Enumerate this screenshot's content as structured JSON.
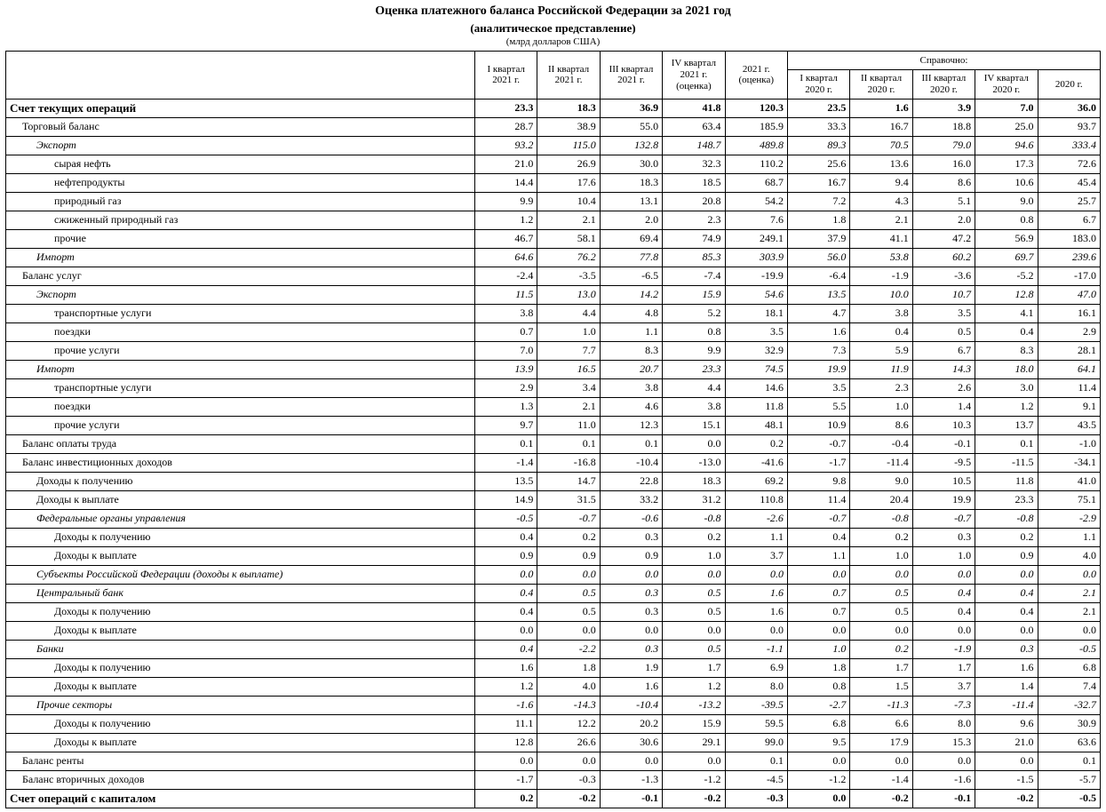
{
  "title_main": "Оценка платежного баланса Российской Федерации за 2021 год",
  "title_sub": "(аналитическое представление)",
  "title_unit": "(млрд долларов США)",
  "header_reference": "Справочно:",
  "columns": [
    "I квартал 2021 г.",
    "II квартал 2021 г.",
    "III квартал 2021 г.",
    "IV квартал 2021 г. (оценка)",
    "2021 г. (оценка)",
    "I квартал 2020 г.",
    "II квартал 2020 г.",
    "III квартал 2020 г.",
    "IV квартал 2020 г.",
    "2020 г."
  ],
  "rows": [
    {
      "label": "Счет текущих операций",
      "indent": 0,
      "bold": true,
      "italic": false,
      "v": [
        "23.3",
        "18.3",
        "36.9",
        "41.8",
        "120.3",
        "23.5",
        "1.6",
        "3.9",
        "7.0",
        "36.0"
      ]
    },
    {
      "label": "Торговый баланс",
      "indent": 1,
      "bold": false,
      "italic": false,
      "v": [
        "28.7",
        "38.9",
        "55.0",
        "63.4",
        "185.9",
        "33.3",
        "16.7",
        "18.8",
        "25.0",
        "93.7"
      ]
    },
    {
      "label": "Экспорт",
      "indent": 2,
      "bold": false,
      "italic": true,
      "v": [
        "93.2",
        "115.0",
        "132.8",
        "148.7",
        "489.8",
        "89.3",
        "70.5",
        "79.0",
        "94.6",
        "333.4"
      ]
    },
    {
      "label": "сырая нефть",
      "indent": 3,
      "bold": false,
      "italic": false,
      "v": [
        "21.0",
        "26.9",
        "30.0",
        "32.3",
        "110.2",
        "25.6",
        "13.6",
        "16.0",
        "17.3",
        "72.6"
      ]
    },
    {
      "label": "нефтепродукты",
      "indent": 3,
      "bold": false,
      "italic": false,
      "v": [
        "14.4",
        "17.6",
        "18.3",
        "18.5",
        "68.7",
        "16.7",
        "9.4",
        "8.6",
        "10.6",
        "45.4"
      ]
    },
    {
      "label": "природный газ",
      "indent": 3,
      "bold": false,
      "italic": false,
      "v": [
        "9.9",
        "10.4",
        "13.1",
        "20.8",
        "54.2",
        "7.2",
        "4.3",
        "5.1",
        "9.0",
        "25.7"
      ]
    },
    {
      "label": "сжиженный природный газ",
      "indent": 3,
      "bold": false,
      "italic": false,
      "v": [
        "1.2",
        "2.1",
        "2.0",
        "2.3",
        "7.6",
        "1.8",
        "2.1",
        "2.0",
        "0.8",
        "6.7"
      ]
    },
    {
      "label": "прочие",
      "indent": 3,
      "bold": false,
      "italic": false,
      "v": [
        "46.7",
        "58.1",
        "69.4",
        "74.9",
        "249.1",
        "37.9",
        "41.1",
        "47.2",
        "56.9",
        "183.0"
      ]
    },
    {
      "label": "Импорт",
      "indent": 2,
      "bold": false,
      "italic": true,
      "v": [
        "64.6",
        "76.2",
        "77.8",
        "85.3",
        "303.9",
        "56.0",
        "53.8",
        "60.2",
        "69.7",
        "239.6"
      ]
    },
    {
      "label": "Баланс услуг",
      "indent": 1,
      "bold": false,
      "italic": false,
      "v": [
        "-2.4",
        "-3.5",
        "-6.5",
        "-7.4",
        "-19.9",
        "-6.4",
        "-1.9",
        "-3.6",
        "-5.2",
        "-17.0"
      ]
    },
    {
      "label": "Экспорт",
      "indent": 2,
      "bold": false,
      "italic": true,
      "v": [
        "11.5",
        "13.0",
        "14.2",
        "15.9",
        "54.6",
        "13.5",
        "10.0",
        "10.7",
        "12.8",
        "47.0"
      ]
    },
    {
      "label": "транспортные услуги",
      "indent": 3,
      "bold": false,
      "italic": false,
      "v": [
        "3.8",
        "4.4",
        "4.8",
        "5.2",
        "18.1",
        "4.7",
        "3.8",
        "3.5",
        "4.1",
        "16.1"
      ]
    },
    {
      "label": "поездки",
      "indent": 3,
      "bold": false,
      "italic": false,
      "v": [
        "0.7",
        "1.0",
        "1.1",
        "0.8",
        "3.5",
        "1.6",
        "0.4",
        "0.5",
        "0.4",
        "2.9"
      ]
    },
    {
      "label": "прочие услуги",
      "indent": 3,
      "bold": false,
      "italic": false,
      "v": [
        "7.0",
        "7.7",
        "8.3",
        "9.9",
        "32.9",
        "7.3",
        "5.9",
        "6.7",
        "8.3",
        "28.1"
      ]
    },
    {
      "label": "Импорт",
      "indent": 2,
      "bold": false,
      "italic": true,
      "v": [
        "13.9",
        "16.5",
        "20.7",
        "23.3",
        "74.5",
        "19.9",
        "11.9",
        "14.3",
        "18.0",
        "64.1"
      ]
    },
    {
      "label": "транспортные услуги",
      "indent": 3,
      "bold": false,
      "italic": false,
      "v": [
        "2.9",
        "3.4",
        "3.8",
        "4.4",
        "14.6",
        "3.5",
        "2.3",
        "2.6",
        "3.0",
        "11.4"
      ]
    },
    {
      "label": "поездки",
      "indent": 3,
      "bold": false,
      "italic": false,
      "v": [
        "1.3",
        "2.1",
        "4.6",
        "3.8",
        "11.8",
        "5.5",
        "1.0",
        "1.4",
        "1.2",
        "9.1"
      ]
    },
    {
      "label": "прочие услуги",
      "indent": 3,
      "bold": false,
      "italic": false,
      "v": [
        "9.7",
        "11.0",
        "12.3",
        "15.1",
        "48.1",
        "10.9",
        "8.6",
        "10.3",
        "13.7",
        "43.5"
      ]
    },
    {
      "label": "Баланс оплаты труда",
      "indent": 1,
      "bold": false,
      "italic": false,
      "v": [
        "0.1",
        "0.1",
        "0.1",
        "0.0",
        "0.2",
        "-0.7",
        "-0.4",
        "-0.1",
        "0.1",
        "-1.0"
      ]
    },
    {
      "label": "Баланс инвестиционных доходов",
      "indent": 1,
      "bold": false,
      "italic": false,
      "v": [
        "-1.4",
        "-16.8",
        "-10.4",
        "-13.0",
        "-41.6",
        "-1.7",
        "-11.4",
        "-9.5",
        "-11.5",
        "-34.1"
      ]
    },
    {
      "label": "Доходы к получению",
      "indent": 2,
      "bold": false,
      "italic": false,
      "v": [
        "13.5",
        "14.7",
        "22.8",
        "18.3",
        "69.2",
        "9.8",
        "9.0",
        "10.5",
        "11.8",
        "41.0"
      ]
    },
    {
      "label": "Доходы к выплате",
      "indent": 2,
      "bold": false,
      "italic": false,
      "v": [
        "14.9",
        "31.5",
        "33.2",
        "31.2",
        "110.8",
        "11.4",
        "20.4",
        "19.9",
        "23.3",
        "75.1"
      ]
    },
    {
      "label": "Федеральные органы управления",
      "indent": 2,
      "bold": false,
      "italic": true,
      "v": [
        "-0.5",
        "-0.7",
        "-0.6",
        "-0.8",
        "-2.6",
        "-0.7",
        "-0.8",
        "-0.7",
        "-0.8",
        "-2.9"
      ]
    },
    {
      "label": "Доходы к получению",
      "indent": 3,
      "bold": false,
      "italic": false,
      "v": [
        "0.4",
        "0.2",
        "0.3",
        "0.2",
        "1.1",
        "0.4",
        "0.2",
        "0.3",
        "0.2",
        "1.1"
      ]
    },
    {
      "label": "Доходы к выплате",
      "indent": 3,
      "bold": false,
      "italic": false,
      "v": [
        "0.9",
        "0.9",
        "0.9",
        "1.0",
        "3.7",
        "1.1",
        "1.0",
        "1.0",
        "0.9",
        "4.0"
      ]
    },
    {
      "label": "Субъекты Российской Федерации (доходы к выплате)",
      "indent": 2,
      "bold": false,
      "italic": true,
      "v": [
        "0.0",
        "0.0",
        "0.0",
        "0.0",
        "0.0",
        "0.0",
        "0.0",
        "0.0",
        "0.0",
        "0.0"
      ]
    },
    {
      "label": "Центральный банк",
      "indent": 2,
      "bold": false,
      "italic": true,
      "v": [
        "0.4",
        "0.5",
        "0.3",
        "0.5",
        "1.6",
        "0.7",
        "0.5",
        "0.4",
        "0.4",
        "2.1"
      ]
    },
    {
      "label": "Доходы к получению",
      "indent": 3,
      "bold": false,
      "italic": false,
      "v": [
        "0.4",
        "0.5",
        "0.3",
        "0.5",
        "1.6",
        "0.7",
        "0.5",
        "0.4",
        "0.4",
        "2.1"
      ]
    },
    {
      "label": "Доходы к выплате",
      "indent": 3,
      "bold": false,
      "italic": false,
      "v": [
        "0.0",
        "0.0",
        "0.0",
        "0.0",
        "0.0",
        "0.0",
        "0.0",
        "0.0",
        "0.0",
        "0.0"
      ]
    },
    {
      "label": "Банки",
      "indent": 2,
      "bold": false,
      "italic": true,
      "v": [
        "0.4",
        "-2.2",
        "0.3",
        "0.5",
        "-1.1",
        "1.0",
        "0.2",
        "-1.9",
        "0.3",
        "-0.5"
      ]
    },
    {
      "label": "Доходы к получению",
      "indent": 3,
      "bold": false,
      "italic": false,
      "v": [
        "1.6",
        "1.8",
        "1.9",
        "1.7",
        "6.9",
        "1.8",
        "1.7",
        "1.7",
        "1.6",
        "6.8"
      ]
    },
    {
      "label": "Доходы к выплате",
      "indent": 3,
      "bold": false,
      "italic": false,
      "v": [
        "1.2",
        "4.0",
        "1.6",
        "1.2",
        "8.0",
        "0.8",
        "1.5",
        "3.7",
        "1.4",
        "7.4"
      ]
    },
    {
      "label": "Прочие секторы",
      "indent": 2,
      "bold": false,
      "italic": true,
      "v": [
        "-1.6",
        "-14.3",
        "-10.4",
        "-13.2",
        "-39.5",
        "-2.7",
        "-11.3",
        "-7.3",
        "-11.4",
        "-32.7"
      ]
    },
    {
      "label": "Доходы к получению",
      "indent": 3,
      "bold": false,
      "italic": false,
      "v": [
        "11.1",
        "12.2",
        "20.2",
        "15.9",
        "59.5",
        "6.8",
        "6.6",
        "8.0",
        "9.6",
        "30.9"
      ]
    },
    {
      "label": "Доходы к выплате",
      "indent": 3,
      "bold": false,
      "italic": false,
      "v": [
        "12.8",
        "26.6",
        "30.6",
        "29.1",
        "99.0",
        "9.5",
        "17.9",
        "15.3",
        "21.0",
        "63.6"
      ]
    },
    {
      "label": "Баланс ренты",
      "indent": 1,
      "bold": false,
      "italic": false,
      "v": [
        "0.0",
        "0.0",
        "0.0",
        "0.0",
        "0.1",
        "0.0",
        "0.0",
        "0.0",
        "0.0",
        "0.1"
      ]
    },
    {
      "label": "Баланс вторичных доходов",
      "indent": 1,
      "bold": false,
      "italic": false,
      "v": [
        "-1.7",
        "-0.3",
        "-1.3",
        "-1.2",
        "-4.5",
        "-1.2",
        "-1.4",
        "-1.6",
        "-1.5",
        "-5.7"
      ]
    },
    {
      "label": "Счет операций с капиталом",
      "indent": 0,
      "bold": true,
      "italic": false,
      "v": [
        "0.2",
        "-0.2",
        "-0.1",
        "-0.2",
        "-0.3",
        "0.0",
        "-0.2",
        "-0.1",
        "-0.2",
        "-0.5"
      ]
    }
  ]
}
